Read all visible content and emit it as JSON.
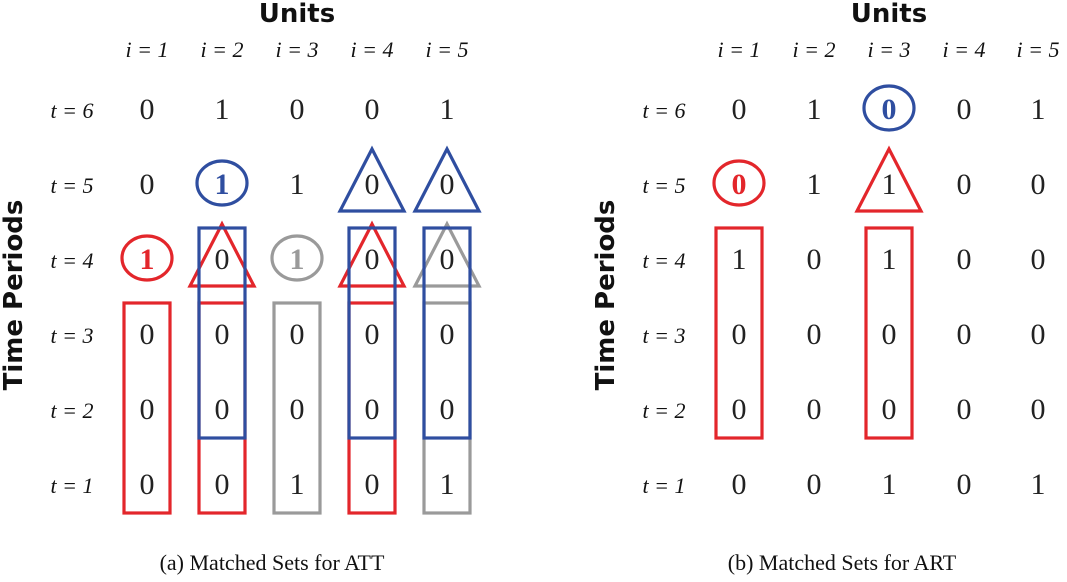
{
  "colors": {
    "red": "#e3262b",
    "blue": "#2f4ea0",
    "gray": "#9a9a9a",
    "text": "#222222"
  },
  "panels": [
    {
      "units_title": "Units",
      "time_title": "Time Periods",
      "caption": "(a) Matched Sets for ATT",
      "col_labels": [
        "i = 1",
        "i = 2",
        "i = 3",
        "i = 4",
        "i = 5"
      ],
      "row_labels": [
        "t = 6",
        "t = 5",
        "t = 4",
        "t = 3",
        "t = 2",
        "t = 1"
      ],
      "cells": [
        [
          "0",
          "1",
          "0",
          "0",
          "1"
        ],
        [
          "0",
          "1",
          "1",
          "0",
          "0"
        ],
        [
          "1",
          "0",
          "1",
          "0",
          "0"
        ],
        [
          "0",
          "0",
          "0",
          "0",
          "0"
        ],
        [
          "0",
          "0",
          "0",
          "0",
          "0"
        ],
        [
          "0",
          "0",
          "1",
          "0",
          "1"
        ]
      ],
      "marks": [
        {
          "shape": "circle",
          "row": 1,
          "col": 1,
          "color": "blue"
        },
        {
          "shape": "triangle",
          "row": 1,
          "col": 3,
          "color": "blue"
        },
        {
          "shape": "triangle",
          "row": 1,
          "col": 4,
          "color": "blue"
        },
        {
          "shape": "circle",
          "row": 2,
          "col": 0,
          "color": "red"
        },
        {
          "shape": "triangle",
          "row": 2,
          "col": 1,
          "color": "red"
        },
        {
          "shape": "circle",
          "row": 2,
          "col": 2,
          "color": "gray"
        },
        {
          "shape": "triangle",
          "row": 2,
          "col": 3,
          "color": "red"
        },
        {
          "shape": "triangle",
          "row": 2,
          "col": 4,
          "color": "gray"
        },
        {
          "shape": "box",
          "col": 0,
          "from_row": 3,
          "to_row": 5,
          "color": "red"
        },
        {
          "shape": "box",
          "col": 1,
          "from_row": 3,
          "to_row": 5,
          "color": "red"
        },
        {
          "shape": "box",
          "col": 2,
          "from_row": 3,
          "to_row": 5,
          "color": "gray"
        },
        {
          "shape": "box",
          "col": 3,
          "from_row": 3,
          "to_row": 5,
          "color": "red"
        },
        {
          "shape": "box",
          "col": 4,
          "from_row": 3,
          "to_row": 5,
          "color": "gray"
        },
        {
          "shape": "box",
          "col": 1,
          "from_row": 2,
          "to_row": 4,
          "color": "blue"
        },
        {
          "shape": "box",
          "col": 3,
          "from_row": 2,
          "to_row": 4,
          "color": "blue"
        },
        {
          "shape": "box",
          "col": 4,
          "from_row": 2,
          "to_row": 4,
          "color": "blue"
        }
      ]
    },
    {
      "units_title": "Units",
      "time_title": "Time Periods",
      "caption": "(b) Matched Sets for ART",
      "col_labels": [
        "i = 1",
        "i = 2",
        "i = 3",
        "i = 4",
        "i = 5"
      ],
      "row_labels": [
        "t = 6",
        "t = 5",
        "t = 4",
        "t = 3",
        "t = 2",
        "t = 1"
      ],
      "cells": [
        [
          "0",
          "1",
          "0",
          "0",
          "1"
        ],
        [
          "0",
          "1",
          "1",
          "0",
          "0"
        ],
        [
          "1",
          "0",
          "1",
          "0",
          "0"
        ],
        [
          "0",
          "0",
          "0",
          "0",
          "0"
        ],
        [
          "0",
          "0",
          "0",
          "0",
          "0"
        ],
        [
          "0",
          "0",
          "1",
          "0",
          "1"
        ]
      ],
      "marks": [
        {
          "shape": "circle",
          "row": 0,
          "col": 2,
          "color": "blue"
        },
        {
          "shape": "circle",
          "row": 1,
          "col": 0,
          "color": "red"
        },
        {
          "shape": "triangle",
          "row": 1,
          "col": 2,
          "color": "red"
        },
        {
          "shape": "box",
          "col": 0,
          "from_row": 2,
          "to_row": 4,
          "color": "red"
        },
        {
          "shape": "box",
          "col": 2,
          "from_row": 2,
          "to_row": 4,
          "color": "red"
        }
      ]
    }
  ]
}
